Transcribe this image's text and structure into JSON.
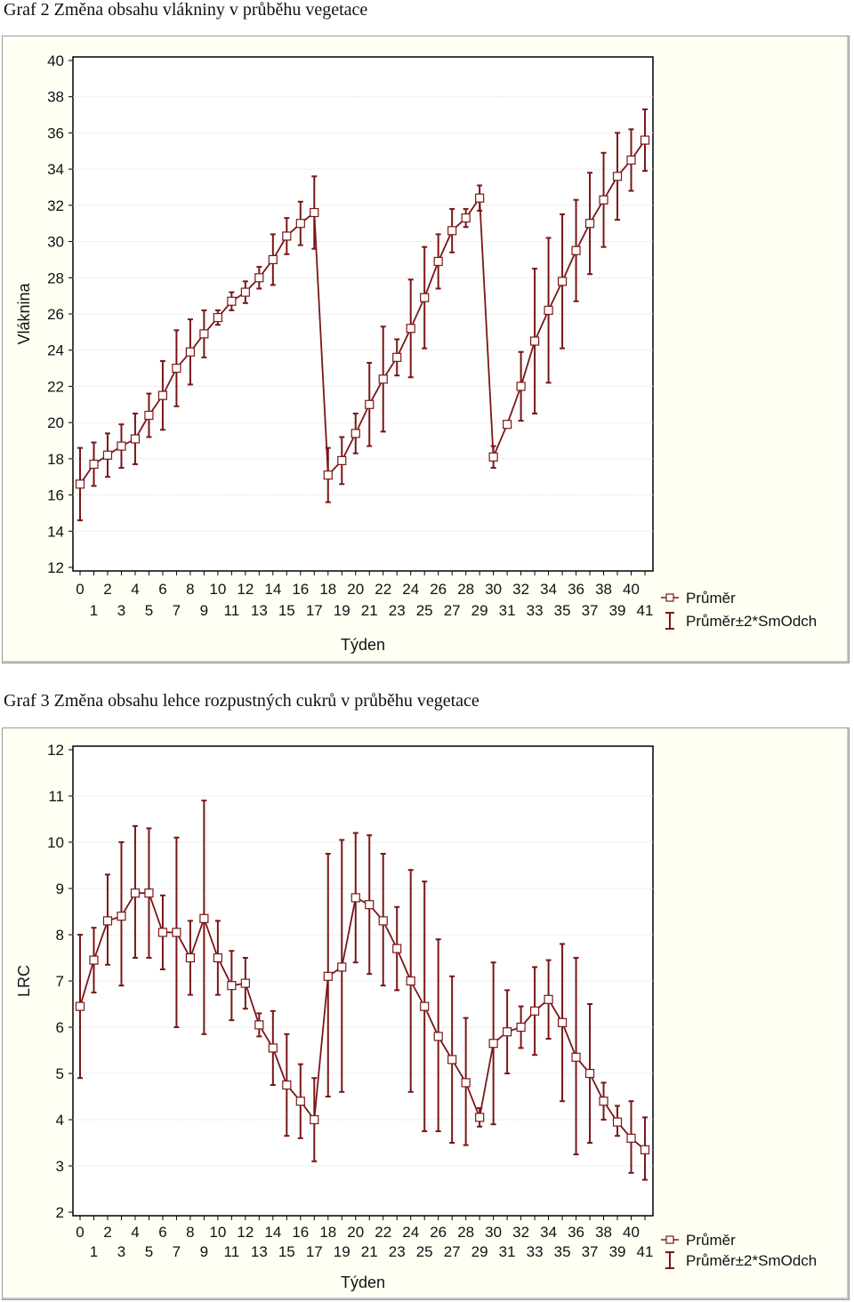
{
  "chart_data": [
    {
      "type": "line",
      "title": "Graf 2 Změna obsahu vlákniny v průběhu vegetace",
      "xlabel": "Týden",
      "ylabel": "Vláknina",
      "xlim": [
        0,
        41
      ],
      "ylim": [
        12,
        40
      ],
      "y_ticks": [
        "12",
        "14",
        "16",
        "18",
        "20",
        "22",
        "24",
        "26",
        "28",
        "30",
        "32",
        "34",
        "36",
        "38",
        "40"
      ],
      "x_ticks_even": [
        "0",
        "2",
        "4",
        "6",
        "8",
        "10",
        "12",
        "14",
        "16",
        "18",
        "20",
        "22",
        "24",
        "26",
        "28",
        "30",
        "32",
        "34",
        "36",
        "38",
        "40"
      ],
      "x_ticks_odd": [
        "1",
        "3",
        "5",
        "7",
        "9",
        "11",
        "13",
        "15",
        "17",
        "19",
        "21",
        "23",
        "25",
        "27",
        "29",
        "31",
        "33",
        "35",
        "37",
        "39",
        "41"
      ],
      "grid": true,
      "legend": "right",
      "legend_entries": [
        "Průměr",
        "Průměr±2*SmOdch"
      ],
      "line_color": "#7a1616",
      "x": [
        0,
        1,
        2,
        3,
        4,
        5,
        6,
        7,
        8,
        9,
        10,
        11,
        12,
        13,
        14,
        15,
        16,
        17,
        18,
        19,
        20,
        21,
        22,
        23,
        24,
        25,
        26,
        27,
        28,
        29,
        30,
        31,
        32,
        33,
        34,
        35,
        36,
        37,
        38,
        39,
        40,
        41
      ],
      "series": [
        {
          "name": "Průměr",
          "values": [
            16.6,
            17.7,
            18.2,
            18.7,
            19.1,
            20.4,
            21.5,
            23.0,
            23.9,
            24.9,
            25.8,
            26.7,
            27.2,
            28.0,
            29.0,
            30.3,
            31.0,
            31.6,
            17.1,
            17.9,
            19.4,
            21.0,
            22.4,
            23.6,
            25.2,
            26.9,
            28.9,
            30.6,
            31.3,
            32.4,
            18.1,
            19.9,
            22.0,
            24.5,
            26.2,
            27.8,
            29.5,
            31.0,
            32.3,
            33.6,
            34.5,
            35.6
          ]
        },
        {
          "name": "Průměr±2*SmOdch",
          "lower": [
            14.6,
            16.5,
            17.0,
            17.5,
            17.7,
            19.2,
            19.6,
            20.9,
            22.1,
            23.6,
            25.4,
            26.2,
            26.6,
            27.4,
            27.6,
            29.3,
            29.8,
            29.6,
            15.6,
            16.6,
            18.3,
            18.7,
            19.5,
            22.6,
            22.5,
            24.1,
            27.4,
            29.4,
            30.8,
            31.7,
            17.5,
            19.9,
            20.1,
            20.5,
            22.2,
            24.1,
            26.7,
            28.2,
            29.7,
            31.2,
            32.8,
            33.9
          ],
          "upper": [
            18.6,
            18.9,
            19.4,
            19.9,
            20.5,
            21.6,
            23.4,
            25.1,
            25.7,
            26.2,
            26.2,
            27.2,
            27.8,
            28.6,
            30.4,
            31.3,
            32.2,
            33.6,
            18.6,
            19.2,
            20.5,
            23.3,
            25.3,
            24.6,
            27.9,
            29.7,
            30.4,
            31.8,
            31.8,
            33.1,
            18.7,
            19.9,
            23.9,
            28.5,
            30.2,
            31.5,
            32.3,
            33.8,
            34.9,
            36.0,
            36.2,
            37.3
          ]
        }
      ]
    },
    {
      "type": "line",
      "title": "Graf 3 Změna obsahu lehce rozpustných cukrů v průběhu vegetace",
      "xlabel": "Týden",
      "ylabel": "LRC",
      "xlim": [
        0,
        41
      ],
      "ylim": [
        2,
        12
      ],
      "y_ticks": [
        "2",
        "3",
        "4",
        "5",
        "6",
        "7",
        "8",
        "9",
        "10",
        "11",
        "12"
      ],
      "x_ticks_even": [
        "0",
        "2",
        "4",
        "6",
        "8",
        "10",
        "12",
        "14",
        "16",
        "18",
        "20",
        "22",
        "24",
        "26",
        "28",
        "30",
        "32",
        "34",
        "36",
        "38",
        "40"
      ],
      "x_ticks_odd": [
        "1",
        "3",
        "5",
        "7",
        "9",
        "11",
        "13",
        "15",
        "17",
        "19",
        "21",
        "23",
        "25",
        "27",
        "29",
        "31",
        "33",
        "35",
        "37",
        "39",
        "41"
      ],
      "grid": true,
      "legend": "right",
      "legend_entries": [
        "Průměr",
        "Průměr±2*SmOdch"
      ],
      "line_color": "#7a1616",
      "x": [
        0,
        1,
        2,
        3,
        4,
        5,
        6,
        7,
        8,
        9,
        10,
        11,
        12,
        13,
        14,
        15,
        16,
        17,
        18,
        19,
        20,
        21,
        22,
        23,
        24,
        25,
        26,
        27,
        28,
        29,
        30,
        31,
        32,
        33,
        34,
        35,
        36,
        37,
        38,
        39,
        40,
        41
      ],
      "series": [
        {
          "name": "Průměr",
          "values": [
            6.45,
            7.45,
            8.3,
            8.4,
            8.9,
            8.9,
            8.05,
            8.05,
            7.5,
            8.35,
            7.5,
            6.9,
            6.95,
            6.05,
            5.55,
            4.75,
            4.4,
            4.0,
            7.1,
            7.3,
            8.8,
            8.65,
            8.3,
            7.7,
            7.0,
            6.45,
            5.8,
            5.3,
            4.8,
            4.05,
            5.65,
            5.9,
            6.0,
            6.35,
            6.6,
            6.1,
            5.35,
            5.0,
            4.4,
            3.95,
            3.6,
            3.35
          ]
        },
        {
          "name": "Průměr±2*SmOdch",
          "lower": [
            4.9,
            6.75,
            7.35,
            6.9,
            7.5,
            7.5,
            7.25,
            6.0,
            6.7,
            5.85,
            6.7,
            6.15,
            6.4,
            5.8,
            4.75,
            3.65,
            3.6,
            3.1,
            4.5,
            4.6,
            7.4,
            7.15,
            6.9,
            6.8,
            4.6,
            3.75,
            3.75,
            3.5,
            3.45,
            3.85,
            3.9,
            5.0,
            5.55,
            5.4,
            5.75,
            4.4,
            3.25,
            3.5,
            4.0,
            3.65,
            2.85,
            2.7
          ]
        },
        {
          "name": "Průměr±2*SmOdch",
          "upper": [
            8.0,
            8.15,
            9.3,
            10.0,
            10.35,
            10.3,
            8.85,
            10.1,
            8.3,
            10.9,
            8.3,
            7.65,
            7.5,
            6.3,
            6.35,
            5.85,
            5.2,
            4.9,
            9.75,
            10.05,
            10.2,
            10.15,
            9.75,
            8.6,
            9.4,
            9.15,
            7.9,
            7.1,
            6.2,
            4.25,
            7.4,
            6.8,
            6.45,
            7.3,
            7.45,
            7.8,
            7.5,
            6.5,
            4.8,
            4.3,
            4.4,
            4.05
          ]
        }
      ]
    }
  ]
}
